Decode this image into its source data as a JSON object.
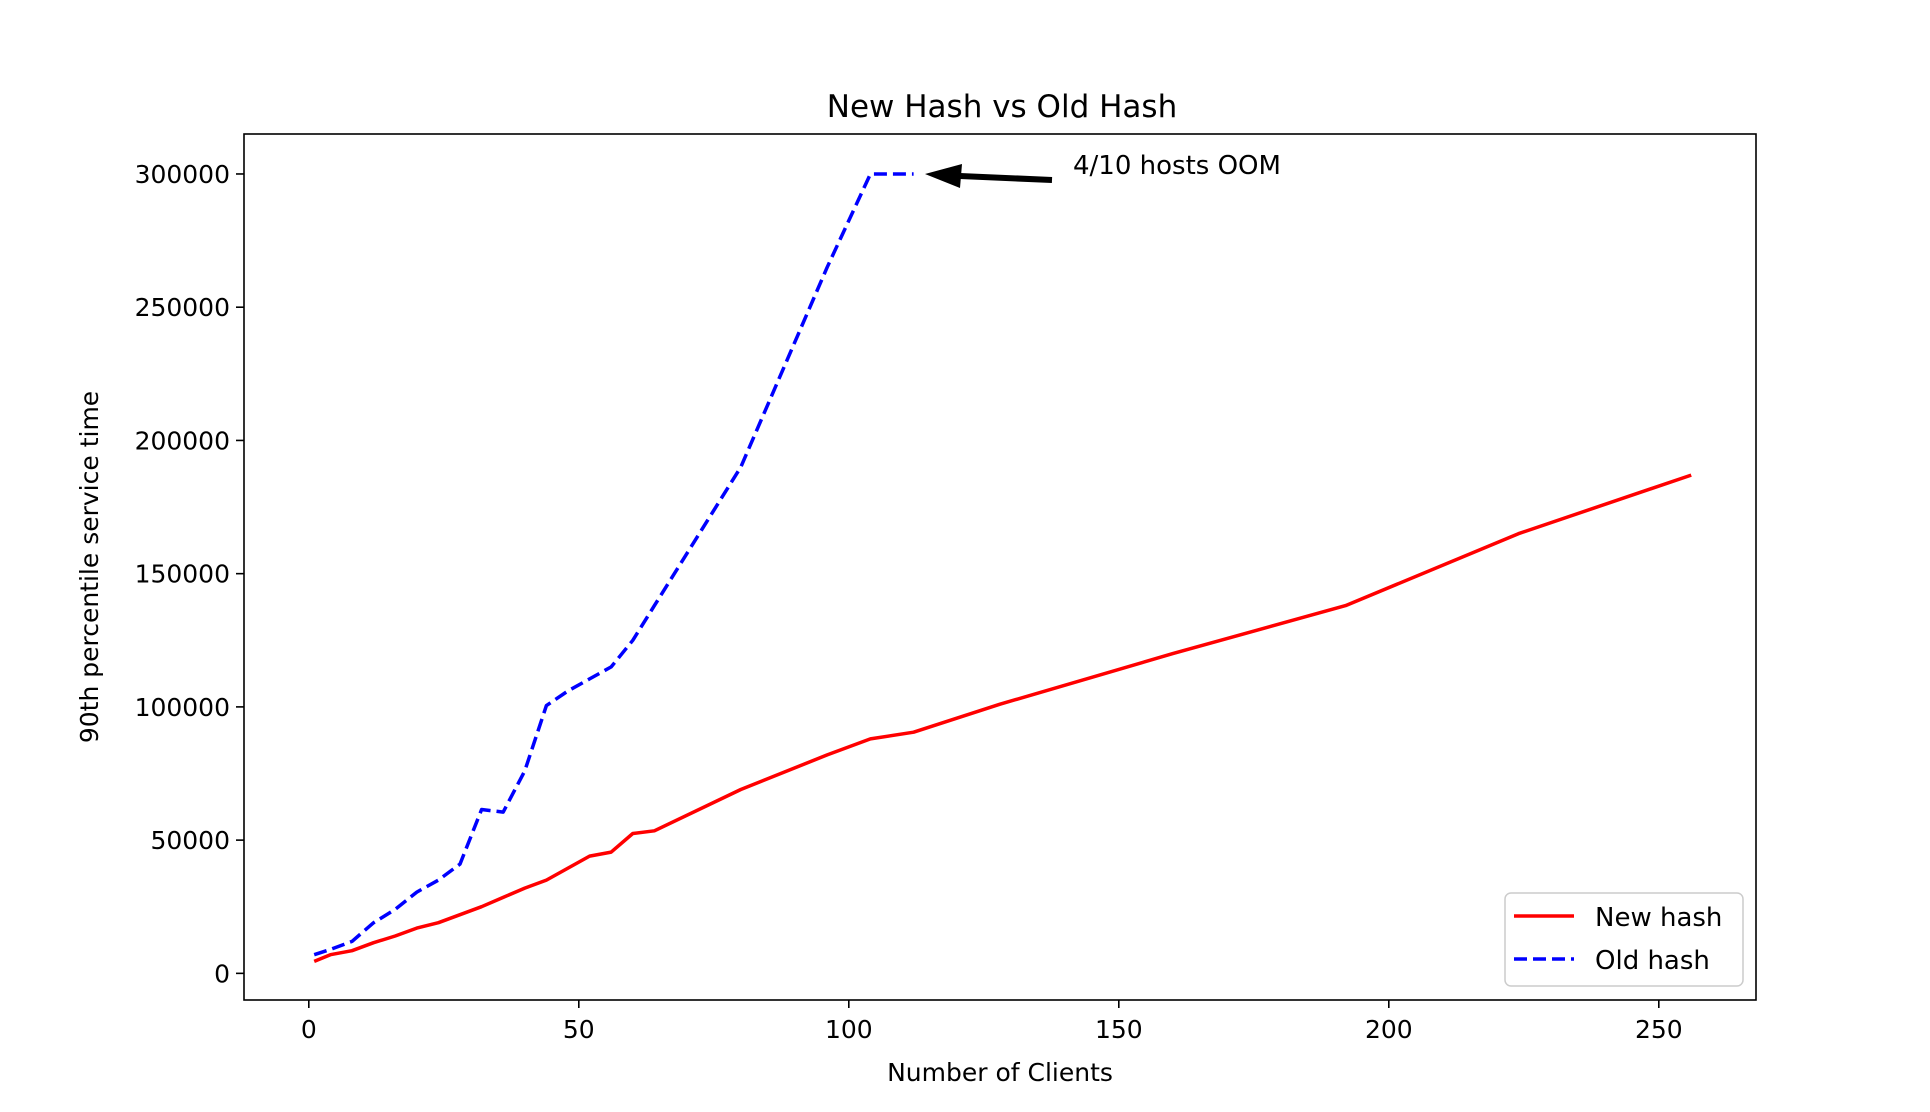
{
  "chart_data": {
    "type": "line",
    "title": "New Hash vs Old Hash",
    "xlabel": "Number of Clients",
    "ylabel": "90th percentile service time",
    "xlim": [
      -12,
      268
    ],
    "ylim": [
      -10000,
      315000
    ],
    "xticks": [
      0,
      50,
      100,
      150,
      200,
      250
    ],
    "yticks": [
      0,
      50000,
      100000,
      150000,
      200000,
      250000,
      300000
    ],
    "grid": false,
    "legend_position": "lower-right",
    "series": [
      {
        "name": "New hash",
        "color": "#ff0000",
        "style": "solid",
        "x": [
          1,
          4,
          8,
          12,
          16,
          20,
          24,
          28,
          32,
          36,
          40,
          44,
          48,
          52,
          56,
          60,
          64,
          80,
          96,
          104,
          112,
          128,
          160,
          192,
          224,
          256
        ],
        "y": [
          4500,
          7000,
          8500,
          11500,
          14000,
          17000,
          19000,
          22000,
          25000,
          28500,
          32000,
          35000,
          39500,
          44000,
          45500,
          52500,
          53500,
          69000,
          82000,
          88000,
          90500,
          101000,
          120000,
          138000,
          165000,
          187000
        ]
      },
      {
        "name": "Old hash",
        "color": "#0000ff",
        "style": "dashed",
        "x": [
          1,
          4,
          8,
          12,
          16,
          20,
          24,
          28,
          32,
          36,
          40,
          44,
          48,
          52,
          56,
          60,
          64,
          80,
          96,
          104,
          112
        ],
        "y": [
          7000,
          9000,
          12000,
          19000,
          24000,
          30500,
          35000,
          41000,
          61500,
          60500,
          76000,
          100500,
          106000,
          110500,
          115000,
          125000,
          138000,
          190000,
          265000,
          300000,
          300000
        ]
      }
    ],
    "annotation": {
      "text": "4/10 hosts OOM",
      "point_xy": [
        113,
        300000
      ],
      "text_xy": [
        142,
        300000
      ]
    }
  }
}
